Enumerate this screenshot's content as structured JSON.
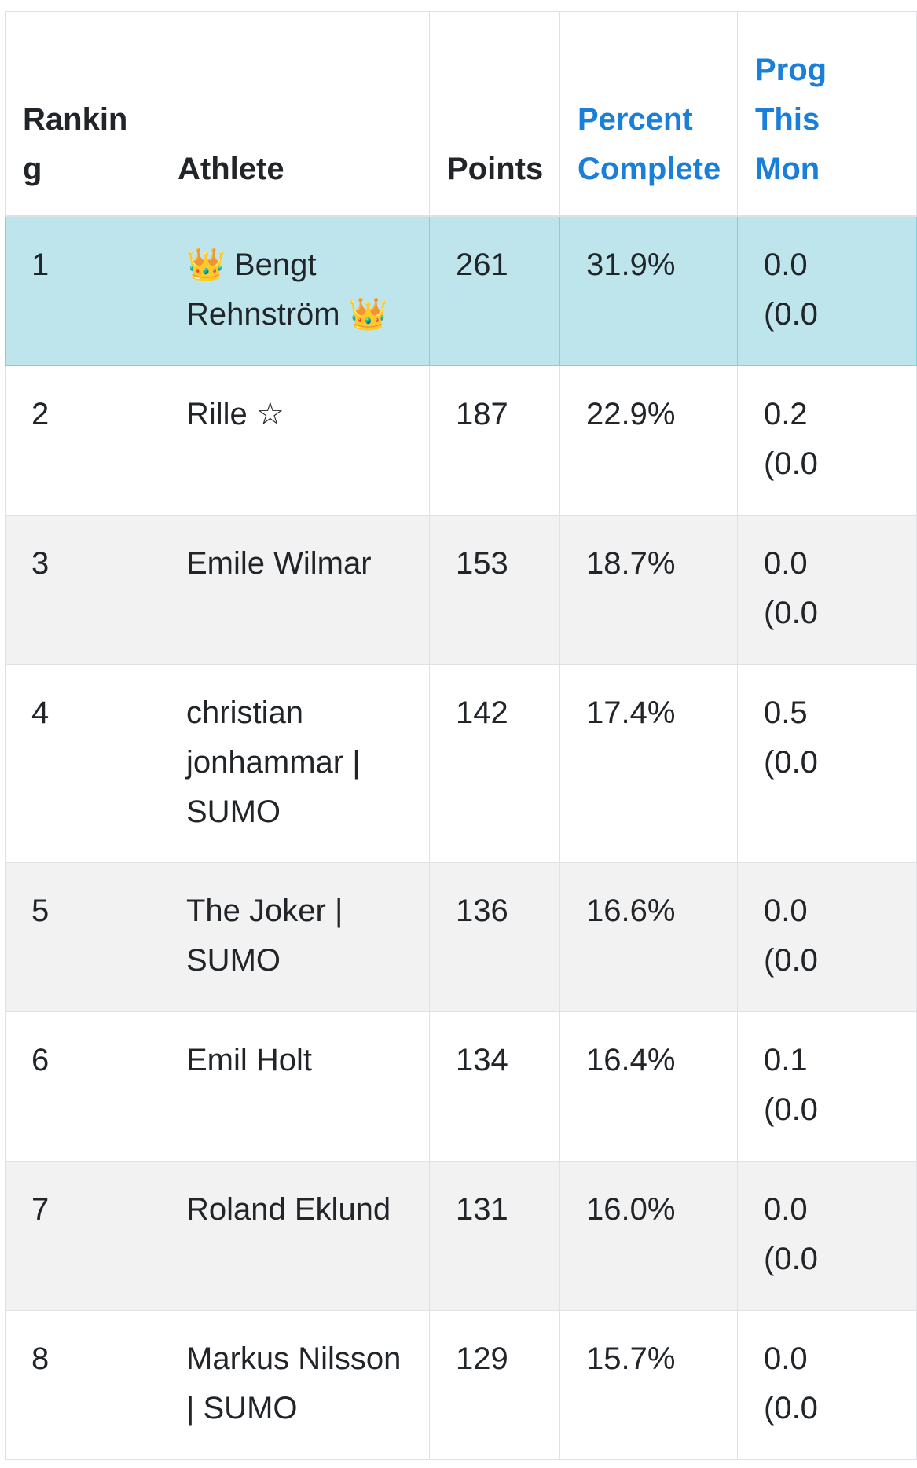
{
  "table": {
    "columns": [
      "Ranking",
      "Athlete",
      "Points",
      "Percent Complete",
      "Prog\nThis\nMon"
    ],
    "rows": [
      [
        "1",
        "👑 Bengt Rehnström 👑",
        "261",
        "31.9%",
        "0.0\n(0.0"
      ],
      [
        "2",
        "Rille ☆",
        "187",
        "22.9%",
        "0.2\n(0.0"
      ],
      [
        "3",
        "Emile Wilmar",
        "153",
        "18.7%",
        "0.0\n(0.0"
      ],
      [
        "4",
        "christian jonhammar | SUMO",
        "142",
        "17.4%",
        "0.5\n(0.0"
      ],
      [
        "5",
        "The Joker | SUMO",
        "136",
        "16.6%",
        "0.0\n(0.0"
      ],
      [
        "6",
        "Emil Holt",
        "134",
        "16.4%",
        "0.1\n(0.0"
      ],
      [
        "7",
        "Roland Eklund",
        "131",
        "16.0%",
        "0.0\n(0.0"
      ],
      [
        "8",
        "Markus Nilsson | SUMO",
        "129",
        "15.7%",
        "0.0\n(0.0"
      ]
    ]
  }
}
